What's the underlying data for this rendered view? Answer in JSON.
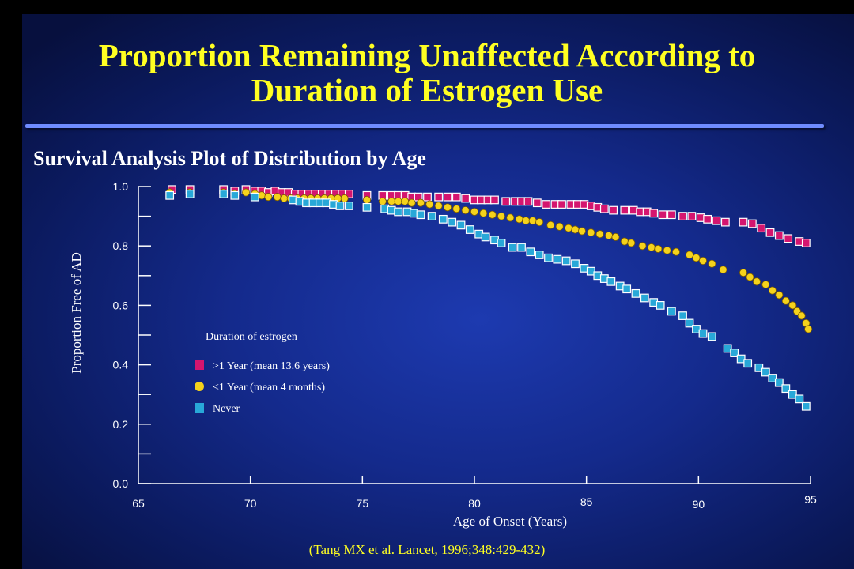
{
  "slide": {
    "title_line1": "Proportion Remaining Unaffected According to",
    "title_line2": "Duration of Estrogen Use",
    "source": "(Tang MX et al. Lancet, 1996;348:429-432)",
    "colors": {
      "background": "#142a8c",
      "title": "#ffff22",
      "rule": "#6f8cff"
    }
  },
  "chart_data": {
    "type": "scatter",
    "title": "Survival Analysis Plot of Distribution by Age",
    "xlabel": "Age of Onset (Years)",
    "ylabel": "Proportion Free of AD",
    "xlim": [
      65,
      95
    ],
    "ylim": [
      0.0,
      1.0
    ],
    "x_ticks": [
      "65",
      "70",
      "75",
      "80",
      "85",
      "90",
      "95"
    ],
    "y_ticks": [
      "0.0",
      "0.2",
      "0.4",
      "0.6",
      "0.8",
      "1.0"
    ],
    "legend_title": "Duration of estrogen",
    "legend_placement": "center-left",
    "series": [
      {
        "name": ">1 Year (mean 13.6 years)",
        "marker": "square",
        "color": "#d4156f",
        "points": [
          [
            66.5,
            0.99
          ],
          [
            67.3,
            0.99
          ],
          [
            68.8,
            0.99
          ],
          [
            69.3,
            0.985
          ],
          [
            69.8,
            0.99
          ],
          [
            70.2,
            0.985
          ],
          [
            70.5,
            0.985
          ],
          [
            70.8,
            0.98
          ],
          [
            71.1,
            0.985
          ],
          [
            71.4,
            0.98
          ],
          [
            71.7,
            0.98
          ],
          [
            72.0,
            0.975
          ],
          [
            72.3,
            0.975
          ],
          [
            72.6,
            0.975
          ],
          [
            72.9,
            0.975
          ],
          [
            73.2,
            0.975
          ],
          [
            73.5,
            0.975
          ],
          [
            73.8,
            0.975
          ],
          [
            74.1,
            0.975
          ],
          [
            74.4,
            0.975
          ],
          [
            75.2,
            0.97
          ],
          [
            75.9,
            0.97
          ],
          [
            76.3,
            0.97
          ],
          [
            76.6,
            0.97
          ],
          [
            76.9,
            0.97
          ],
          [
            77.2,
            0.965
          ],
          [
            77.5,
            0.965
          ],
          [
            77.9,
            0.965
          ],
          [
            78.4,
            0.965
          ],
          [
            78.8,
            0.965
          ],
          [
            79.2,
            0.965
          ],
          [
            79.6,
            0.96
          ],
          [
            80.0,
            0.955
          ],
          [
            80.3,
            0.955
          ],
          [
            80.6,
            0.955
          ],
          [
            80.9,
            0.955
          ],
          [
            81.4,
            0.95
          ],
          [
            81.8,
            0.95
          ],
          [
            82.1,
            0.95
          ],
          [
            82.4,
            0.95
          ],
          [
            82.8,
            0.945
          ],
          [
            83.2,
            0.94
          ],
          [
            83.6,
            0.94
          ],
          [
            83.9,
            0.94
          ],
          [
            84.3,
            0.94
          ],
          [
            84.6,
            0.94
          ],
          [
            84.9,
            0.94
          ],
          [
            85.2,
            0.935
          ],
          [
            85.5,
            0.93
          ],
          [
            85.8,
            0.925
          ],
          [
            86.2,
            0.92
          ],
          [
            86.7,
            0.92
          ],
          [
            87.1,
            0.92
          ],
          [
            87.4,
            0.915
          ],
          [
            87.7,
            0.915
          ],
          [
            88.0,
            0.91
          ],
          [
            88.4,
            0.905
          ],
          [
            88.8,
            0.905
          ],
          [
            89.3,
            0.9
          ],
          [
            89.7,
            0.9
          ],
          [
            90.1,
            0.895
          ],
          [
            90.4,
            0.89
          ],
          [
            90.8,
            0.885
          ],
          [
            91.2,
            0.88
          ],
          [
            92.0,
            0.88
          ],
          [
            92.4,
            0.875
          ],
          [
            92.8,
            0.86
          ],
          [
            93.2,
            0.845
          ],
          [
            93.6,
            0.835
          ],
          [
            94.0,
            0.825
          ],
          [
            94.5,
            0.815
          ],
          [
            94.8,
            0.81
          ]
        ]
      },
      {
        "name": "<1 Year (mean 4 months)",
        "marker": "circle",
        "color": "#f5d21c",
        "points": [
          [
            66.4,
            0.98
          ],
          [
            67.3,
            0.98
          ],
          [
            68.8,
            0.98
          ],
          [
            69.3,
            0.975
          ],
          [
            69.8,
            0.98
          ],
          [
            70.2,
            0.975
          ],
          [
            70.5,
            0.97
          ],
          [
            70.8,
            0.965
          ],
          [
            71.2,
            0.965
          ],
          [
            71.5,
            0.96
          ],
          [
            71.8,
            0.96
          ],
          [
            72.1,
            0.96
          ],
          [
            72.4,
            0.96
          ],
          [
            72.7,
            0.96
          ],
          [
            73.0,
            0.96
          ],
          [
            73.3,
            0.96
          ],
          [
            73.6,
            0.96
          ],
          [
            73.9,
            0.96
          ],
          [
            74.2,
            0.96
          ],
          [
            75.2,
            0.955
          ],
          [
            75.9,
            0.95
          ],
          [
            76.3,
            0.95
          ],
          [
            76.6,
            0.95
          ],
          [
            76.9,
            0.95
          ],
          [
            77.2,
            0.945
          ],
          [
            77.6,
            0.945
          ],
          [
            78.0,
            0.94
          ],
          [
            78.4,
            0.935
          ],
          [
            78.8,
            0.93
          ],
          [
            79.2,
            0.925
          ],
          [
            79.6,
            0.92
          ],
          [
            80.0,
            0.915
          ],
          [
            80.4,
            0.91
          ],
          [
            80.8,
            0.905
          ],
          [
            81.2,
            0.9
          ],
          [
            81.6,
            0.895
          ],
          [
            82.0,
            0.89
          ],
          [
            82.3,
            0.885
          ],
          [
            82.6,
            0.885
          ],
          [
            82.9,
            0.88
          ],
          [
            83.4,
            0.87
          ],
          [
            83.8,
            0.865
          ],
          [
            84.2,
            0.86
          ],
          [
            84.5,
            0.855
          ],
          [
            84.8,
            0.85
          ],
          [
            85.2,
            0.845
          ],
          [
            85.6,
            0.84
          ],
          [
            86.0,
            0.835
          ],
          [
            86.3,
            0.83
          ],
          [
            86.7,
            0.815
          ],
          [
            87.0,
            0.81
          ],
          [
            87.5,
            0.8
          ],
          [
            87.9,
            0.795
          ],
          [
            88.2,
            0.79
          ],
          [
            88.6,
            0.785
          ],
          [
            89.0,
            0.78
          ],
          [
            89.6,
            0.77
          ],
          [
            89.9,
            0.76
          ],
          [
            90.2,
            0.75
          ],
          [
            90.6,
            0.74
          ],
          [
            91.1,
            0.72
          ],
          [
            92.0,
            0.71
          ],
          [
            92.3,
            0.695
          ],
          [
            92.6,
            0.68
          ],
          [
            93.0,
            0.67
          ],
          [
            93.3,
            0.65
          ],
          [
            93.6,
            0.635
          ],
          [
            93.9,
            0.615
          ],
          [
            94.2,
            0.6
          ],
          [
            94.4,
            0.58
          ],
          [
            94.6,
            0.565
          ],
          [
            94.8,
            0.54
          ],
          [
            94.9,
            0.52
          ]
        ]
      },
      {
        "name": "Never",
        "marker": "square",
        "color": "#28a8d8",
        "points": [
          [
            66.4,
            0.97
          ],
          [
            67.3,
            0.975
          ],
          [
            68.8,
            0.975
          ],
          [
            69.3,
            0.97
          ],
          [
            70.2,
            0.965
          ],
          [
            71.9,
            0.955
          ],
          [
            72.2,
            0.95
          ],
          [
            72.5,
            0.945
          ],
          [
            72.8,
            0.945
          ],
          [
            73.1,
            0.945
          ],
          [
            73.4,
            0.945
          ],
          [
            73.7,
            0.94
          ],
          [
            74.0,
            0.935
          ],
          [
            74.4,
            0.935
          ],
          [
            75.2,
            0.93
          ],
          [
            76.0,
            0.925
          ],
          [
            76.3,
            0.92
          ],
          [
            76.6,
            0.915
          ],
          [
            77.0,
            0.915
          ],
          [
            77.3,
            0.91
          ],
          [
            77.6,
            0.905
          ],
          [
            78.1,
            0.9
          ],
          [
            78.6,
            0.89
          ],
          [
            79.0,
            0.88
          ],
          [
            79.4,
            0.87
          ],
          [
            79.8,
            0.855
          ],
          [
            80.2,
            0.84
          ],
          [
            80.5,
            0.83
          ],
          [
            80.9,
            0.82
          ],
          [
            81.2,
            0.81
          ],
          [
            81.7,
            0.795
          ],
          [
            82.1,
            0.795
          ],
          [
            82.5,
            0.78
          ],
          [
            82.9,
            0.77
          ],
          [
            83.3,
            0.76
          ],
          [
            83.7,
            0.755
          ],
          [
            84.1,
            0.75
          ],
          [
            84.5,
            0.74
          ],
          [
            84.9,
            0.725
          ],
          [
            85.2,
            0.715
          ],
          [
            85.5,
            0.7
          ],
          [
            85.8,
            0.69
          ],
          [
            86.1,
            0.68
          ],
          [
            86.5,
            0.665
          ],
          [
            86.8,
            0.655
          ],
          [
            87.2,
            0.64
          ],
          [
            87.6,
            0.625
          ],
          [
            88.0,
            0.61
          ],
          [
            88.3,
            0.6
          ],
          [
            88.8,
            0.58
          ],
          [
            89.3,
            0.565
          ],
          [
            89.6,
            0.54
          ],
          [
            89.9,
            0.52
          ],
          [
            90.2,
            0.505
          ],
          [
            90.6,
            0.495
          ],
          [
            91.3,
            0.455
          ],
          [
            91.6,
            0.44
          ],
          [
            91.9,
            0.42
          ],
          [
            92.2,
            0.405
          ],
          [
            92.7,
            0.39
          ],
          [
            93.0,
            0.375
          ],
          [
            93.3,
            0.355
          ],
          [
            93.6,
            0.34
          ],
          [
            93.9,
            0.32
          ],
          [
            94.2,
            0.3
          ],
          [
            94.5,
            0.285
          ],
          [
            94.8,
            0.26
          ]
        ]
      }
    ]
  }
}
